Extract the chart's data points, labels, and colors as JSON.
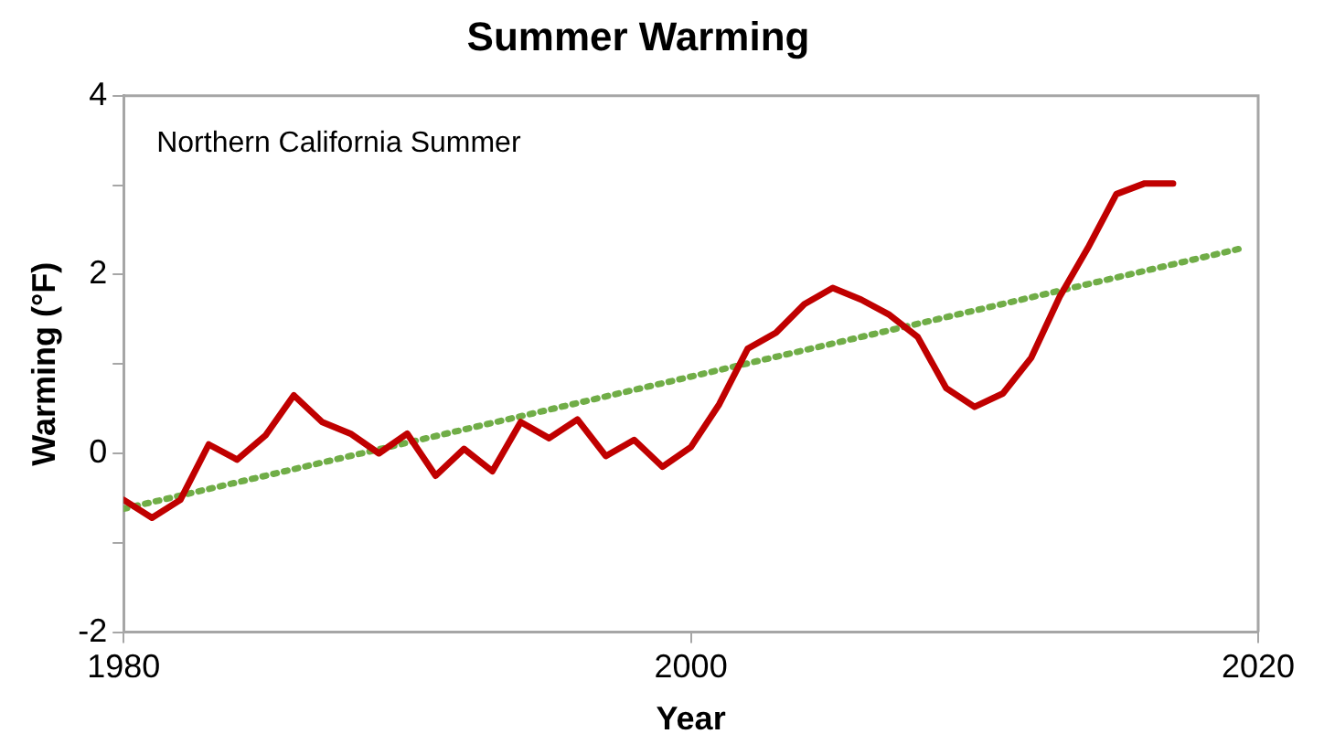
{
  "chart_data": {
    "type": "line",
    "title": "Summer Warming",
    "xlabel": "Year",
    "ylabel": "Warming (°F)",
    "annotations": [
      "Northern California Summer"
    ],
    "xlim": [
      1980,
      2020
    ],
    "xticks": [
      1980,
      2000,
      2020
    ],
    "ylim": [
      -2,
      4
    ],
    "yticks": [
      -2,
      {
        "value": -1,
        "label": null
      },
      0,
      {
        "value": 1,
        "label": null
      },
      2,
      {
        "value": 3,
        "label": null
      },
      4
    ],
    "grid": false,
    "legend": false,
    "marker": "none",
    "series": [
      {
        "color": "#c00000",
        "line_style": "solid",
        "x": [
          1980,
          1981,
          1982,
          1983,
          1984,
          1985,
          1986,
          1987,
          1988,
          1989,
          1990,
          1991,
          1992,
          1993,
          1994,
          1995,
          1996,
          1997,
          1998,
          1999,
          2000,
          2001,
          2002,
          2003,
          2004,
          2005,
          2006,
          2007,
          2008,
          2009,
          2010,
          2011,
          2012,
          2013,
          2014,
          2015,
          2016,
          2017
        ],
        "values": [
          -0.52,
          -0.72,
          -0.52,
          0.1,
          -0.07,
          0.2,
          0.65,
          0.35,
          0.22,
          0.0,
          0.22,
          -0.25,
          0.05,
          -0.2,
          0.35,
          0.17,
          0.38,
          -0.03,
          0.15,
          -0.15,
          0.07,
          0.55,
          1.17,
          1.35,
          1.67,
          1.85,
          1.72,
          1.55,
          1.3,
          0.73,
          0.52,
          0.67,
          1.07,
          1.75,
          2.3,
          2.9,
          3.02,
          3.02
        ]
      },
      {
        "type": "line",
        "color": "#70ad47",
        "line_style": "dotted",
        "x": [
          1980,
          2019.5
        ],
        "values": [
          -0.62,
          2.3
        ]
      }
    ]
  }
}
